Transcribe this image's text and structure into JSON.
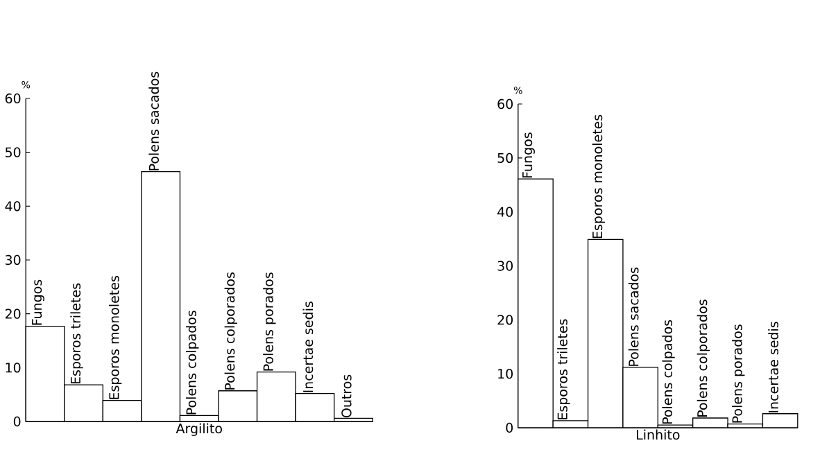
{
  "chart_data": [
    {
      "type": "bar",
      "xlabel": "Argilito",
      "ylabel": "%",
      "categories": [
        "Fungos",
        "Esporos triletes",
        "Esporos monoletes",
        "Polens sacados",
        "Polens colpados",
        "Polens colporados",
        "Polens porados",
        "Incertae sedis",
        "Outros"
      ],
      "values": [
        17.7,
        6.8,
        3.9,
        46.4,
        1.1,
        5.7,
        9.2,
        5.2,
        0.6
      ],
      "color": "#ffffff",
      "ylim": [
        0,
        60
      ],
      "yticks": [
        0,
        10,
        20,
        30,
        40,
        50,
        60
      ]
    },
    {
      "type": "bar",
      "xlabel": "Linhito",
      "ylabel": "%",
      "categories": [
        "Fungos",
        "Esporos triletes",
        "Esporos monoletes",
        "Polens sacados",
        "Polens colpados",
        "Polens colporados",
        "Polens porados",
        "Incertae sedis"
      ],
      "values": [
        46.1,
        1.3,
        34.9,
        11.2,
        0.5,
        1.8,
        0.7,
        2.6
      ],
      "color": "#ffffff",
      "ylim": [
        0,
        60
      ],
      "yticks": [
        0,
        10,
        20,
        30,
        40,
        50,
        60
      ]
    }
  ]
}
